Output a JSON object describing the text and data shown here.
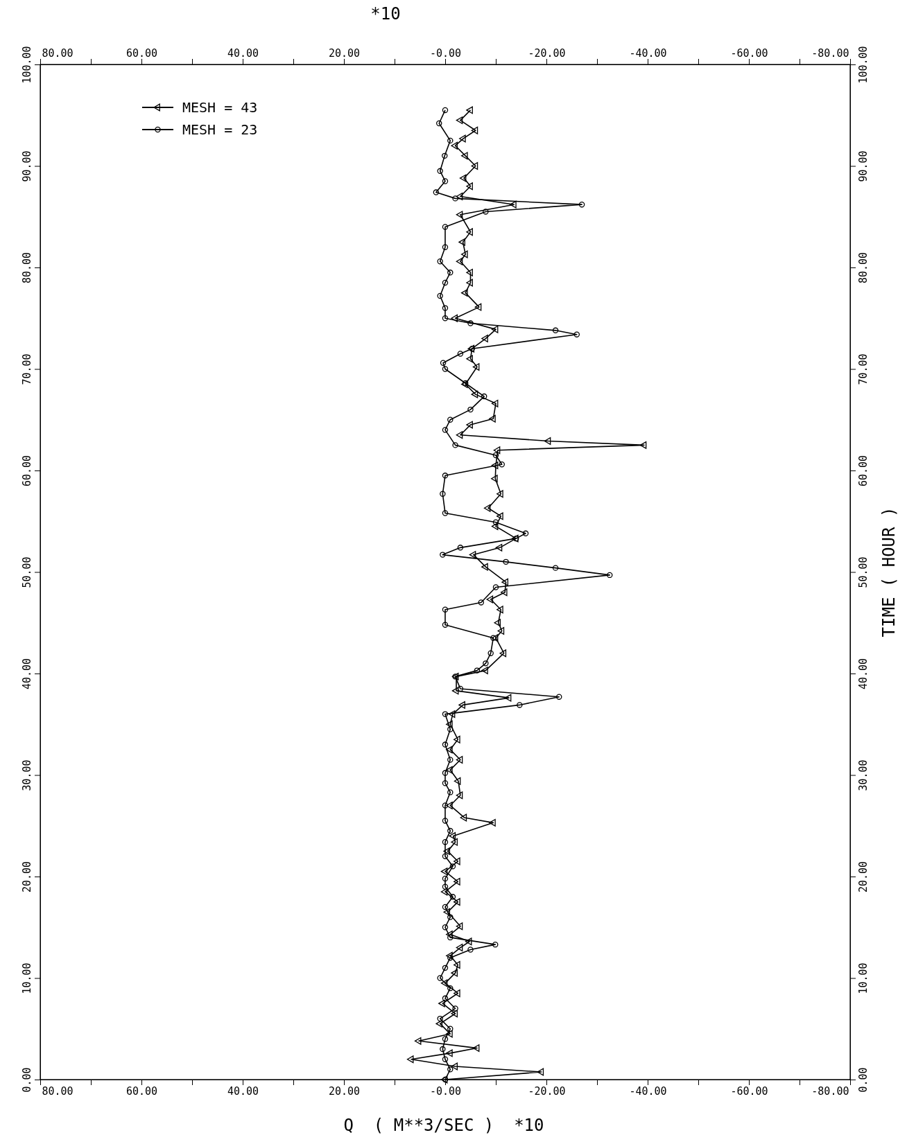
{
  "chart_data": {
    "type": "line",
    "xlabel": "Q  ( M**3/SEC )  *10",
    "x2label": "*10",
    "y2label": "TIME ( HOUR )",
    "legend": "top left",
    "xlim": [
      80,
      -80
    ],
    "x2lim": [
      80,
      -80
    ],
    "ylim": [
      0,
      100
    ],
    "y2lim": [
      0,
      100
    ],
    "yticks": [
      {
        "value": 0,
        "label": "0.00"
      },
      {
        "value": 10,
        "label": "10.00"
      },
      {
        "value": 20,
        "label": "20.00"
      },
      {
        "value": 30,
        "label": "30.00"
      },
      {
        "value": 40,
        "label": "40.00"
      },
      {
        "value": 50,
        "label": "50.00"
      },
      {
        "value": 60,
        "label": "60.00"
      },
      {
        "value": 70,
        "label": "70.00"
      },
      {
        "value": 80,
        "label": "80.00"
      },
      {
        "value": 90,
        "label": "90.00"
      },
      {
        "value": 100,
        "label": "100.00"
      }
    ],
    "y2ticks": [
      {
        "value": 0,
        "label": "0.00"
      },
      {
        "value": 10,
        "label": "10.00"
      },
      {
        "value": 20,
        "label": "20.00"
      },
      {
        "value": 30,
        "label": "30.00"
      },
      {
        "value": 40,
        "label": "40.00"
      },
      {
        "value": 50,
        "label": "50.00"
      },
      {
        "value": 60,
        "label": "60.00"
      },
      {
        "value": 70,
        "label": "70.00"
      },
      {
        "value": 80,
        "label": "80.00"
      },
      {
        "value": 90,
        "label": "90.00"
      },
      {
        "value": 100,
        "label": "100.00"
      }
    ],
    "xticks": [
      {
        "value": 80,
        "label": "80.00"
      },
      {
        "value": 70,
        "label": null
      },
      {
        "value": 60,
        "label": "60.00"
      },
      {
        "value": 50,
        "label": null
      },
      {
        "value": 40,
        "label": "40.00"
      },
      {
        "value": 30,
        "label": null
      },
      {
        "value": 20,
        "label": "20.00"
      },
      {
        "value": 10,
        "label": null
      },
      {
        "value": 0,
        "label": "-0.00"
      },
      {
        "value": -10,
        "label": null
      },
      {
        "value": -20,
        "label": "-20.00"
      },
      {
        "value": -30,
        "label": null
      },
      {
        "value": -40,
        "label": "-40.00"
      },
      {
        "value": -50,
        "label": null
      },
      {
        "value": -60,
        "label": "-60.00"
      },
      {
        "value": -70,
        "label": null
      },
      {
        "value": -80,
        "label": "-80.00"
      }
    ],
    "x2ticks": [
      {
        "value": 80,
        "label": "80.00"
      },
      {
        "value": 70,
        "label": null
      },
      {
        "value": 60,
        "label": "60.00"
      },
      {
        "value": 50,
        "label": null
      },
      {
        "value": 40,
        "label": "40.00"
      },
      {
        "value": 30,
        "label": null
      },
      {
        "value": 20,
        "label": "20.00"
      },
      {
        "value": 10,
        "label": null
      },
      {
        "value": 0,
        "label": "-0.00"
      },
      {
        "value": -10,
        "label": null
      },
      {
        "value": -20,
        "label": "-20.00"
      },
      {
        "value": -30,
        "label": null
      },
      {
        "value": -40,
        "label": "-40.00"
      },
      {
        "value": -50,
        "label": null
      },
      {
        "value": -60,
        "label": "-60.00"
      },
      {
        "value": -70,
        "label": null
      },
      {
        "value": -80,
        "label": "-80.00"
      }
    ],
    "series": [
      {
        "name": "MESH = 43",
        "color": "#000000",
        "marker": "triangle",
        "values": [
          0,
          0.75,
          1.3,
          2.0,
          2.6,
          3.1,
          3.8,
          4.5,
          5.5,
          6.5,
          7.5,
          8.5,
          9.5,
          10.5,
          11.3,
          12.2,
          13.0,
          13.6,
          14.3,
          15.1,
          16.5,
          17.5,
          18.5,
          19.5,
          20.5,
          21.5,
          22.5,
          23.4,
          24.0,
          25.3,
          25.8,
          27.0,
          28.0,
          29.4,
          30.5,
          31.5,
          32.5,
          33.5,
          35,
          36.0,
          36.9,
          37.6,
          38.3,
          39.7,
          40.3,
          42.0,
          43.5,
          44.2,
          45,
          46.3,
          47.3,
          48.0,
          49.0,
          50.5,
          51.7,
          52.4,
          53.3,
          54.5,
          55.5,
          56.3,
          57.7,
          59.2,
          60.5,
          62.0,
          62.5,
          62.9,
          63.5,
          64.5,
          65.1,
          66.6,
          67.5,
          68.5,
          70.2,
          71,
          72.0,
          73.0,
          73.9,
          75.0,
          76.1,
          77.5,
          78.5,
          79.5,
          80.6,
          81.3,
          82.5,
          83.5,
          85.2,
          86.2,
          87.0,
          88.0,
          88.8,
          90,
          91.0,
          92.0,
          92.7,
          93.5,
          94.5,
          95.5
        ],
        "x": [
          0,
          -19,
          -2,
          6.7,
          -1,
          -6.3,
          5.2,
          -1,
          1,
          -2,
          0.5,
          -2.5,
          0,
          -2,
          -2.5,
          -1,
          -3,
          -4.8,
          -1,
          -3,
          -0.5,
          -2.5,
          0,
          -2.5,
          0,
          -2.5,
          -0.5,
          -2,
          -1.6,
          -9.5,
          -3.8,
          -1,
          -3,
          -2.6,
          -1,
          -3,
          -1,
          -2.5,
          -1,
          -1.5,
          -3.5,
          -12.6,
          -2.2,
          -2.2,
          -8,
          -11.6,
          -10,
          -11.2,
          -10.5,
          -11,
          -9,
          -11.8,
          -12,
          -8,
          -5.6,
          -10.8,
          -14,
          -10,
          -11,
          -8.5,
          -11,
          -9.9,
          -10,
          -10.4,
          -39.3,
          -20.4,
          -3,
          -5,
          -9.5,
          -10,
          -6,
          -4,
          -6.3,
          -5,
          -5.3,
          -8,
          -10,
          -2,
          -6.7,
          -4,
          -5,
          -5,
          -3,
          -4,
          -3.5,
          -5,
          -3,
          -13.6,
          -3,
          -5,
          -3.7,
          -6,
          -4,
          -2,
          -3.6,
          -6,
          -3,
          -5
        ]
      },
      {
        "name": "MESH = 23",
        "color": "#000000",
        "marker": "circle",
        "values": [
          0,
          1,
          2,
          3,
          4,
          5,
          6,
          7,
          8,
          9,
          10,
          11,
          12,
          12.8,
          13.3,
          14,
          15,
          16,
          17,
          18,
          19,
          19.8,
          21,
          22,
          23.4,
          24.5,
          25.5,
          27.0,
          28.3,
          29.2,
          30.2,
          31.5,
          33,
          34.5,
          36.0,
          36.9,
          37.7,
          38.5,
          39.7,
          40.3,
          41,
          42.0,
          43.5,
          44.8,
          46.3,
          47.0,
          48.5,
          49.7,
          50.4,
          51.0,
          51.7,
          52.4,
          53.3,
          53.8,
          54.9,
          55.8,
          57.7,
          59.5,
          60.6,
          61.5,
          62.5,
          64.0,
          65,
          66,
          67.3,
          68.6,
          70.0,
          70.6,
          71.5,
          72.0,
          73.4,
          73.8,
          74.5,
          75,
          76,
          77.2,
          78.5,
          79.5,
          80.6,
          82,
          84.0,
          85.5,
          86.2,
          86.8,
          87.4,
          88.5,
          89.5,
          91.0,
          92.5,
          94.2,
          95.5
        ],
        "x": [
          0,
          -1,
          0,
          0.5,
          0,
          -1,
          1,
          -2,
          0,
          -1,
          1,
          0,
          -1,
          -5,
          -9.9,
          -1,
          0,
          -1,
          0,
          -1.5,
          0,
          0,
          -1.5,
          0,
          0,
          -1,
          0,
          0,
          -1,
          0,
          0,
          -1,
          0,
          -1,
          0,
          -14.7,
          -22.5,
          -3,
          -2,
          -6.3,
          -8,
          -9,
          -9.5,
          0,
          0,
          -7.1,
          -10,
          -32.5,
          -21.8,
          -12,
          0.5,
          -3,
          -14,
          -15.9,
          -10,
          0,
          0.5,
          0,
          -11.2,
          -10,
          -2,
          0,
          -1,
          -5,
          -7.7,
          -4,
          0,
          0.4,
          -3,
          -5.3,
          -26,
          -21.8,
          -5,
          0,
          0,
          1,
          0,
          -1,
          1,
          0,
          0,
          -8,
          -27,
          -2,
          1.8,
          0,
          1,
          0.1,
          -1,
          1.2,
          0
        ]
      }
    ]
  }
}
